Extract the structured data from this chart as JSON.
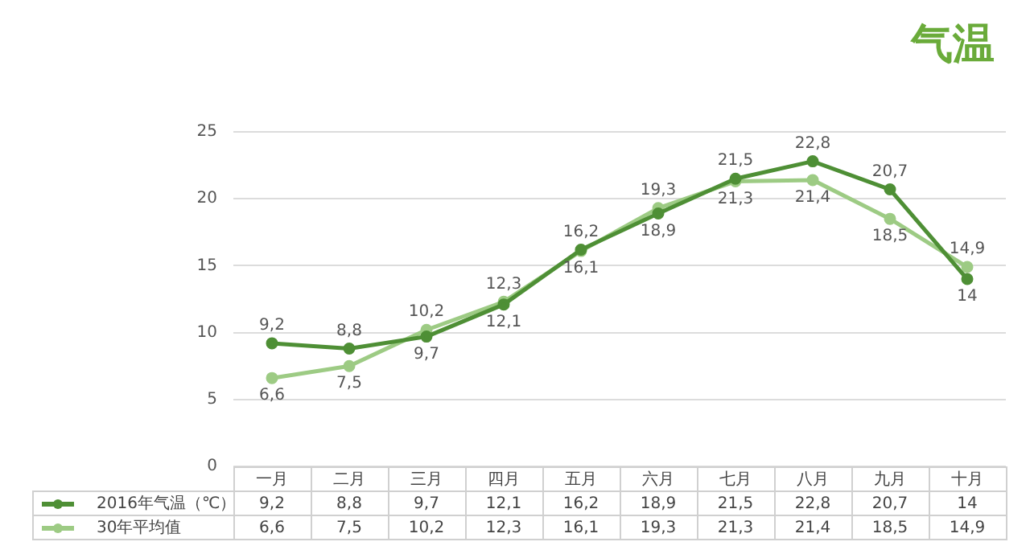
{
  "chart_data": {
    "type": "line",
    "title": "气温",
    "categories": [
      "一月",
      "二月",
      "三月",
      "四月",
      "五月",
      "六月",
      "七月",
      "八月",
      "九月",
      "十月"
    ],
    "series": [
      {
        "name": "2016年气温（℃）",
        "color": "#4e8f35",
        "values": [
          9.2,
          8.8,
          9.7,
          12.1,
          16.2,
          18.9,
          21.5,
          22.8,
          20.7,
          14
        ],
        "value_labels": [
          "9,2",
          "8,8",
          "9,7",
          "12,1",
          "16,2",
          "18,9",
          "21,5",
          "22,8",
          "20,7",
          "14"
        ]
      },
      {
        "name": "30年平均值",
        "color": "#9dcb84",
        "values": [
          6.6,
          7.5,
          10.2,
          12.3,
          16.1,
          19.3,
          21.3,
          21.4,
          18.5,
          14.9
        ],
        "value_labels": [
          "6,6",
          "7,5",
          "10,2",
          "12,3",
          "16,1",
          "19,3",
          "21,3",
          "21,4",
          "18,5",
          "14,9"
        ]
      }
    ],
    "ylim": [
      0,
      25
    ],
    "yticks": [
      0,
      5,
      10,
      15,
      20,
      25
    ],
    "grid": "y",
    "legend": "bottom",
    "marker": "circle",
    "line_style": "solid"
  }
}
